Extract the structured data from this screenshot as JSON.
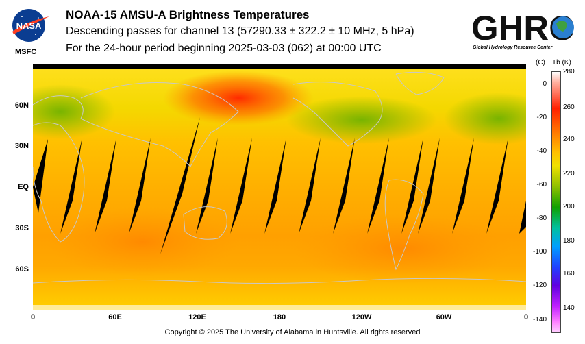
{
  "header": {
    "agency_logo_text": "NASA",
    "agency_sublabel": "MSFC",
    "title": "NOAA-15 AMSU-A Brightness Temperatures",
    "subtitle": "Descending passes for channel 13 (57290.33 ± 322.2 ± 10 MHz, 5 hPa)",
    "period": "For the 24-hour period beginning 2025-03-03 (062) at 00:00 UTC",
    "ghrc_logo_text": "GHRC",
    "ghrc_subtitle": "Global Hydrology Resource Center"
  },
  "map": {
    "lat_labels": [
      "60N",
      "30N",
      "EQ",
      "30S",
      "60S"
    ],
    "lon_labels": [
      "0",
      "60E",
      "120E",
      "180",
      "120W",
      "60W",
      "0"
    ],
    "colors": {
      "warm": "#ff8c00",
      "mid": "#ffd000",
      "cool": "#7fb800",
      "hot": "#ff3000",
      "gap": "#000000",
      "coast": "#c8c8c8"
    }
  },
  "colorbar": {
    "unit_c": "(C)",
    "unit_k": "Tb  (K)",
    "celsius_ticks": [
      "0",
      "-20",
      "-40",
      "-60",
      "-80",
      "-100",
      "-120",
      "-140"
    ],
    "kelvin_ticks": [
      "280",
      "260",
      "240",
      "220",
      "200",
      "180",
      "160",
      "140"
    ]
  },
  "footer": {
    "copyright": "Copyright © 2025 The University of Alabama in Huntsville.  All rights reserved"
  }
}
